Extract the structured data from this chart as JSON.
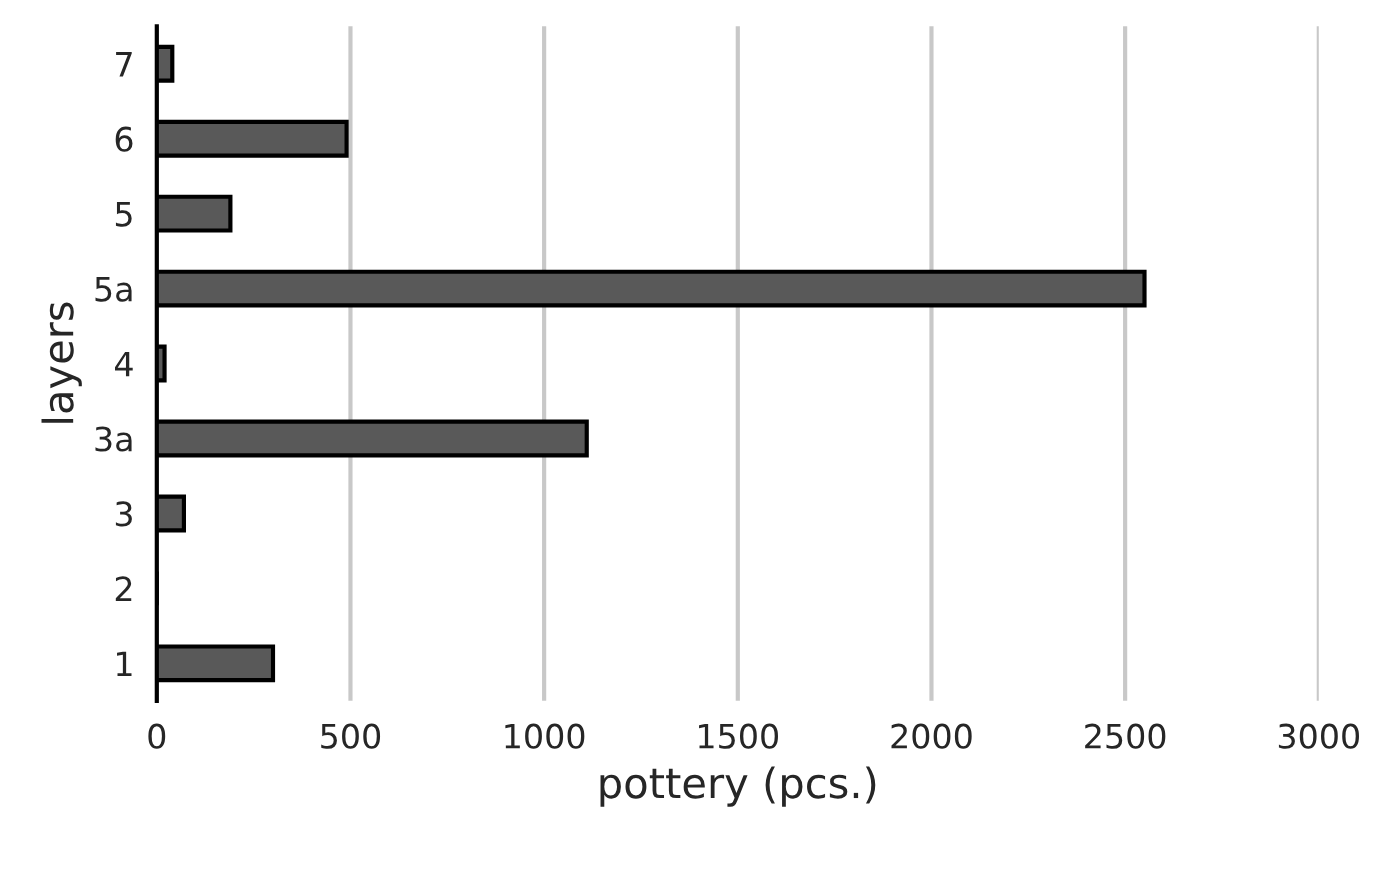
{
  "chart_data": {
    "type": "bar",
    "orientation": "horizontal",
    "xlabel": "pottery (pcs.)",
    "ylabel": "layers",
    "categories": [
      "7",
      "6",
      "5",
      "5a",
      "4",
      "3a",
      "3",
      "2",
      "1"
    ],
    "values": [
      40,
      490,
      190,
      2550,
      20,
      1110,
      70,
      0,
      300
    ],
    "color": "#595959",
    "xlim": [
      0,
      3000
    ],
    "xticks": [
      0,
      500,
      1000,
      1500,
      2000,
      2500,
      3000
    ],
    "grid": "x",
    "legend": false
  }
}
